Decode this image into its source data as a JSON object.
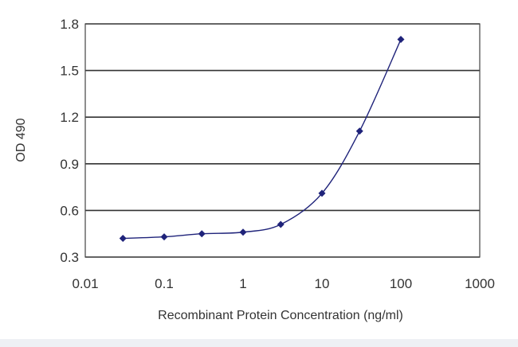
{
  "chart_data": {
    "type": "line",
    "xlabel": "Recombinant Protein Concentration (ng/ml)",
    "ylabel": "OD 490",
    "x_scale": "log",
    "xlim": [
      0.01,
      1000
    ],
    "ylim": [
      0.3,
      1.8
    ],
    "x_ticks": [
      "0.01",
      "0.1",
      "1",
      "10",
      "100",
      "1000"
    ],
    "y_ticks": [
      "0.3",
      "0.6",
      "0.9",
      "1.2",
      "1.5",
      "1.8"
    ],
    "grid": "horizontal",
    "series": [
      {
        "color": "#1f237a",
        "x": [
          0.03,
          0.1,
          0.3,
          1,
          3,
          10,
          30,
          100
        ],
        "y": [
          0.42,
          0.43,
          0.45,
          0.46,
          0.51,
          0.71,
          1.11,
          1.7
        ]
      }
    ]
  }
}
